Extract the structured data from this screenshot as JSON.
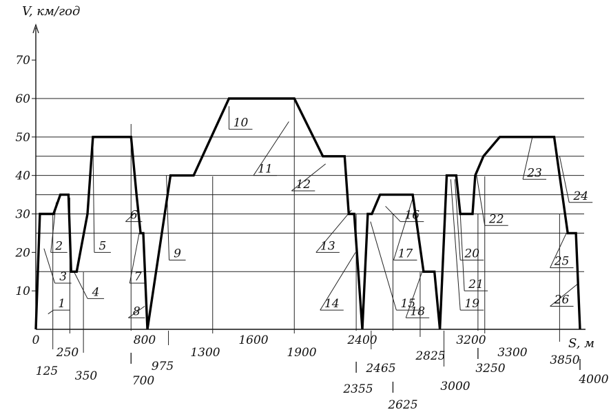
{
  "chart_data": {
    "type": "line",
    "xlabel": "S, м",
    "ylabel": "V, км/год",
    "xlim": [
      0,
      4000
    ],
    "ylim": [
      0,
      78
    ],
    "yticks": [
      "10",
      "20",
      "30",
      "40",
      "50",
      "60",
      "70"
    ],
    "xticks_main": [
      "0",
      "800",
      "1600",
      "2400",
      "3200"
    ],
    "x_marks": [
      {
        "x": 125,
        "label": "125"
      },
      {
        "x": 250,
        "label": "250"
      },
      {
        "x": 350,
        "label": "350"
      },
      {
        "x": 700,
        "label": "700"
      },
      {
        "x": 975,
        "label": "975"
      },
      {
        "x": 1300,
        "label": "1300"
      },
      {
        "x": 1900,
        "label": "1900"
      },
      {
        "x": 2355,
        "label": "2355"
      },
      {
        "x": 2465,
        "label": "2465"
      },
      {
        "x": 2625,
        "label": "2625"
      },
      {
        "x": 2825,
        "label": "2825"
      },
      {
        "x": 3000,
        "label": "3000"
      },
      {
        "x": 3250,
        "label": "3250"
      },
      {
        "x": 3300,
        "label": "3300"
      },
      {
        "x": 3850,
        "label": "3850"
      },
      {
        "x": 4000,
        "label": "4000"
      }
    ],
    "reference_levels": [
      15,
      25,
      30,
      35,
      40,
      45,
      50,
      60
    ],
    "series": [
      {
        "x": [
          0,
          30,
          100,
          130,
          180,
          240,
          260,
          300,
          380,
          420,
          460,
          700,
          740,
          770,
          790,
          820,
          990,
          1160,
          1420,
          1900,
          2110,
          2200,
          2270,
          2300,
          2340,
          2400,
          2440,
          2470,
          2530,
          2540,
          2620,
          2770,
          2810,
          2850,
          2930,
          2970,
          3020,
          3090,
          3120,
          3210,
          3230,
          3290,
          3410,
          3810,
          3910,
          3970,
          4000
        ],
        "y": [
          0,
          30,
          30,
          30,
          35,
          35,
          15,
          15,
          30,
          50,
          50,
          50,
          35,
          25,
          25,
          0,
          40,
          40,
          60,
          60,
          45,
          45,
          45,
          30,
          30,
          0,
          30,
          30,
          35,
          35,
          35,
          35,
          25,
          15,
          15,
          0,
          40,
          40,
          30,
          30,
          40,
          45,
          50,
          50,
          25,
          25,
          0
        ]
      }
    ],
    "annotations": [
      {
        "label": "1",
        "x": 90,
        "y": 4,
        "tx": 130,
        "ty": 5
      },
      {
        "label": "2",
        "x": 150,
        "y": 33,
        "tx": 110,
        "ty": 20
      },
      {
        "label": "3",
        "x": 60,
        "y": 21,
        "tx": 140,
        "ty": 12
      },
      {
        "label": "4",
        "x": 280,
        "y": 15,
        "tx": 380,
        "ty": 8
      },
      {
        "label": "5",
        "x": 420,
        "y": 48,
        "tx": 430,
        "ty": 20
      },
      {
        "label": "6",
        "x": 720,
        "y": 30,
        "tx": 660,
        "ty": 28
      },
      {
        "label": "7",
        "x": 760,
        "y": 25,
        "tx": 690,
        "ty": 12
      },
      {
        "label": "8",
        "x": 800,
        "y": 6,
        "tx": 680,
        "ty": 3
      },
      {
        "label": "9",
        "x": 960,
        "y": 40,
        "tx": 980,
        "ty": 18
      },
      {
        "label": "10",
        "x": 1420,
        "y": 58,
        "tx": 1420,
        "ty": 52
      },
      {
        "label": "11",
        "x": 1860,
        "y": 54,
        "tx": 1600,
        "ty": 40
      },
      {
        "label": "12",
        "x": 2130,
        "y": 43,
        "tx": 1880,
        "ty": 36
      },
      {
        "label": "13",
        "x": 2320,
        "y": 31,
        "tx": 2060,
        "ty": 20
      },
      {
        "label": "14",
        "x": 2350,
        "y": 20,
        "tx": 2090,
        "ty": 5
      },
      {
        "label": "15",
        "x": 2460,
        "y": 28,
        "tx": 2650,
        "ty": 5
      },
      {
        "label": "16",
        "x": 2570,
        "y": 32,
        "tx": 2680,
        "ty": 28
      },
      {
        "label": "17",
        "x": 2770,
        "y": 34,
        "tx": 2630,
        "ty": 18
      },
      {
        "label": "18",
        "x": 2840,
        "y": 15,
        "tx": 2720,
        "ty": 3
      },
      {
        "label": "19",
        "x": 3050,
        "y": 39,
        "tx": 3120,
        "ty": 5
      },
      {
        "label": "20",
        "x": 3080,
        "y": 39,
        "tx": 3120,
        "ty": 18
      },
      {
        "label": "21",
        "x": 3120,
        "y": 30,
        "tx": 3150,
        "ty": 10
      },
      {
        "label": "22",
        "x": 3240,
        "y": 40,
        "tx": 3300,
        "ty": 27
      },
      {
        "label": "23",
        "x": 3650,
        "y": 50,
        "tx": 3580,
        "ty": 39
      },
      {
        "label": "24",
        "x": 3850,
        "y": 45,
        "tx": 3920,
        "ty": 33
      },
      {
        "label": "25",
        "x": 3900,
        "y": 25,
        "tx": 3780,
        "ty": 16
      },
      {
        "label": "26",
        "x": 3990,
        "y": 12,
        "tx": 3780,
        "ty": 6
      }
    ]
  }
}
